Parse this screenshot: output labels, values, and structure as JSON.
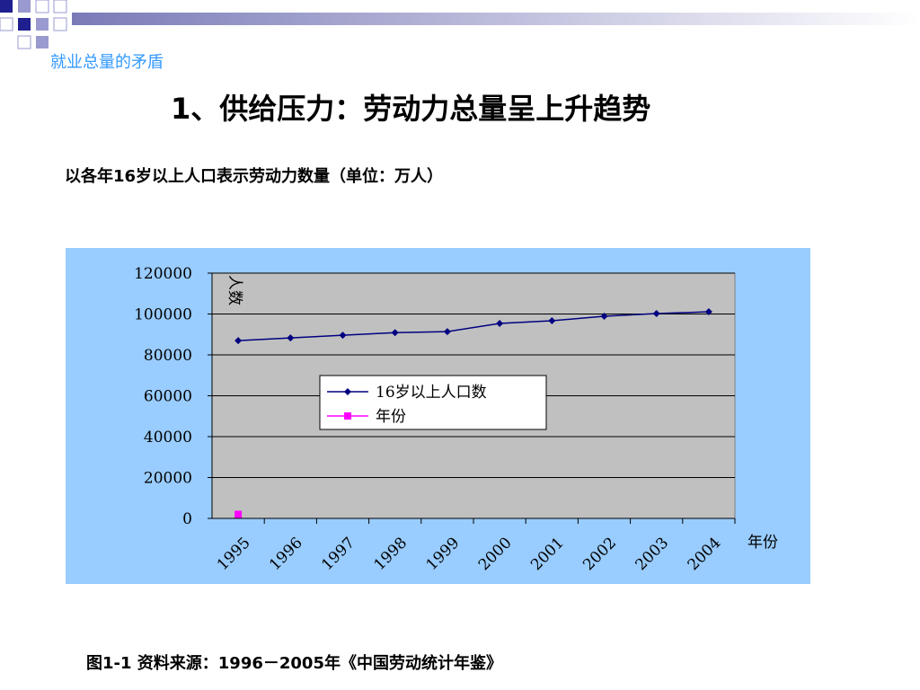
{
  "header": {
    "section": "就业总量的矛盾",
    "title": "1、供给压力：劳动力总量呈上升趋势"
  },
  "subtitle": "以各年16岁以上人口表示劳动力数量（单位：万人）",
  "chart_data": {
    "type": "line",
    "y_label": "人数",
    "x_label": "年份",
    "categories": [
      "1995",
      "1996",
      "1997",
      "1998",
      "1999",
      "2000",
      "2001",
      "2002",
      "2003",
      "2004"
    ],
    "series": [
      {
        "name": "16岁以上人口数",
        "color": "#000080",
        "marker": "diamond",
        "values": [
          87000,
          88300,
          89600,
          90900,
          91400,
          95400,
          96700,
          98900,
          100200,
          101100
        ]
      },
      {
        "name": "年份",
        "color": "#ff00ff",
        "marker": "square",
        "values": [
          1995,
          null,
          null,
          null,
          null,
          null,
          null,
          null,
          null,
          null
        ]
      }
    ],
    "ylim": [
      0,
      120000
    ],
    "yticks": [
      0,
      20000,
      40000,
      60000,
      80000,
      100000,
      120000
    ],
    "grid": true
  },
  "caption": "图1-1  资料来源：1996－2005年《中国劳动统计年鉴》"
}
